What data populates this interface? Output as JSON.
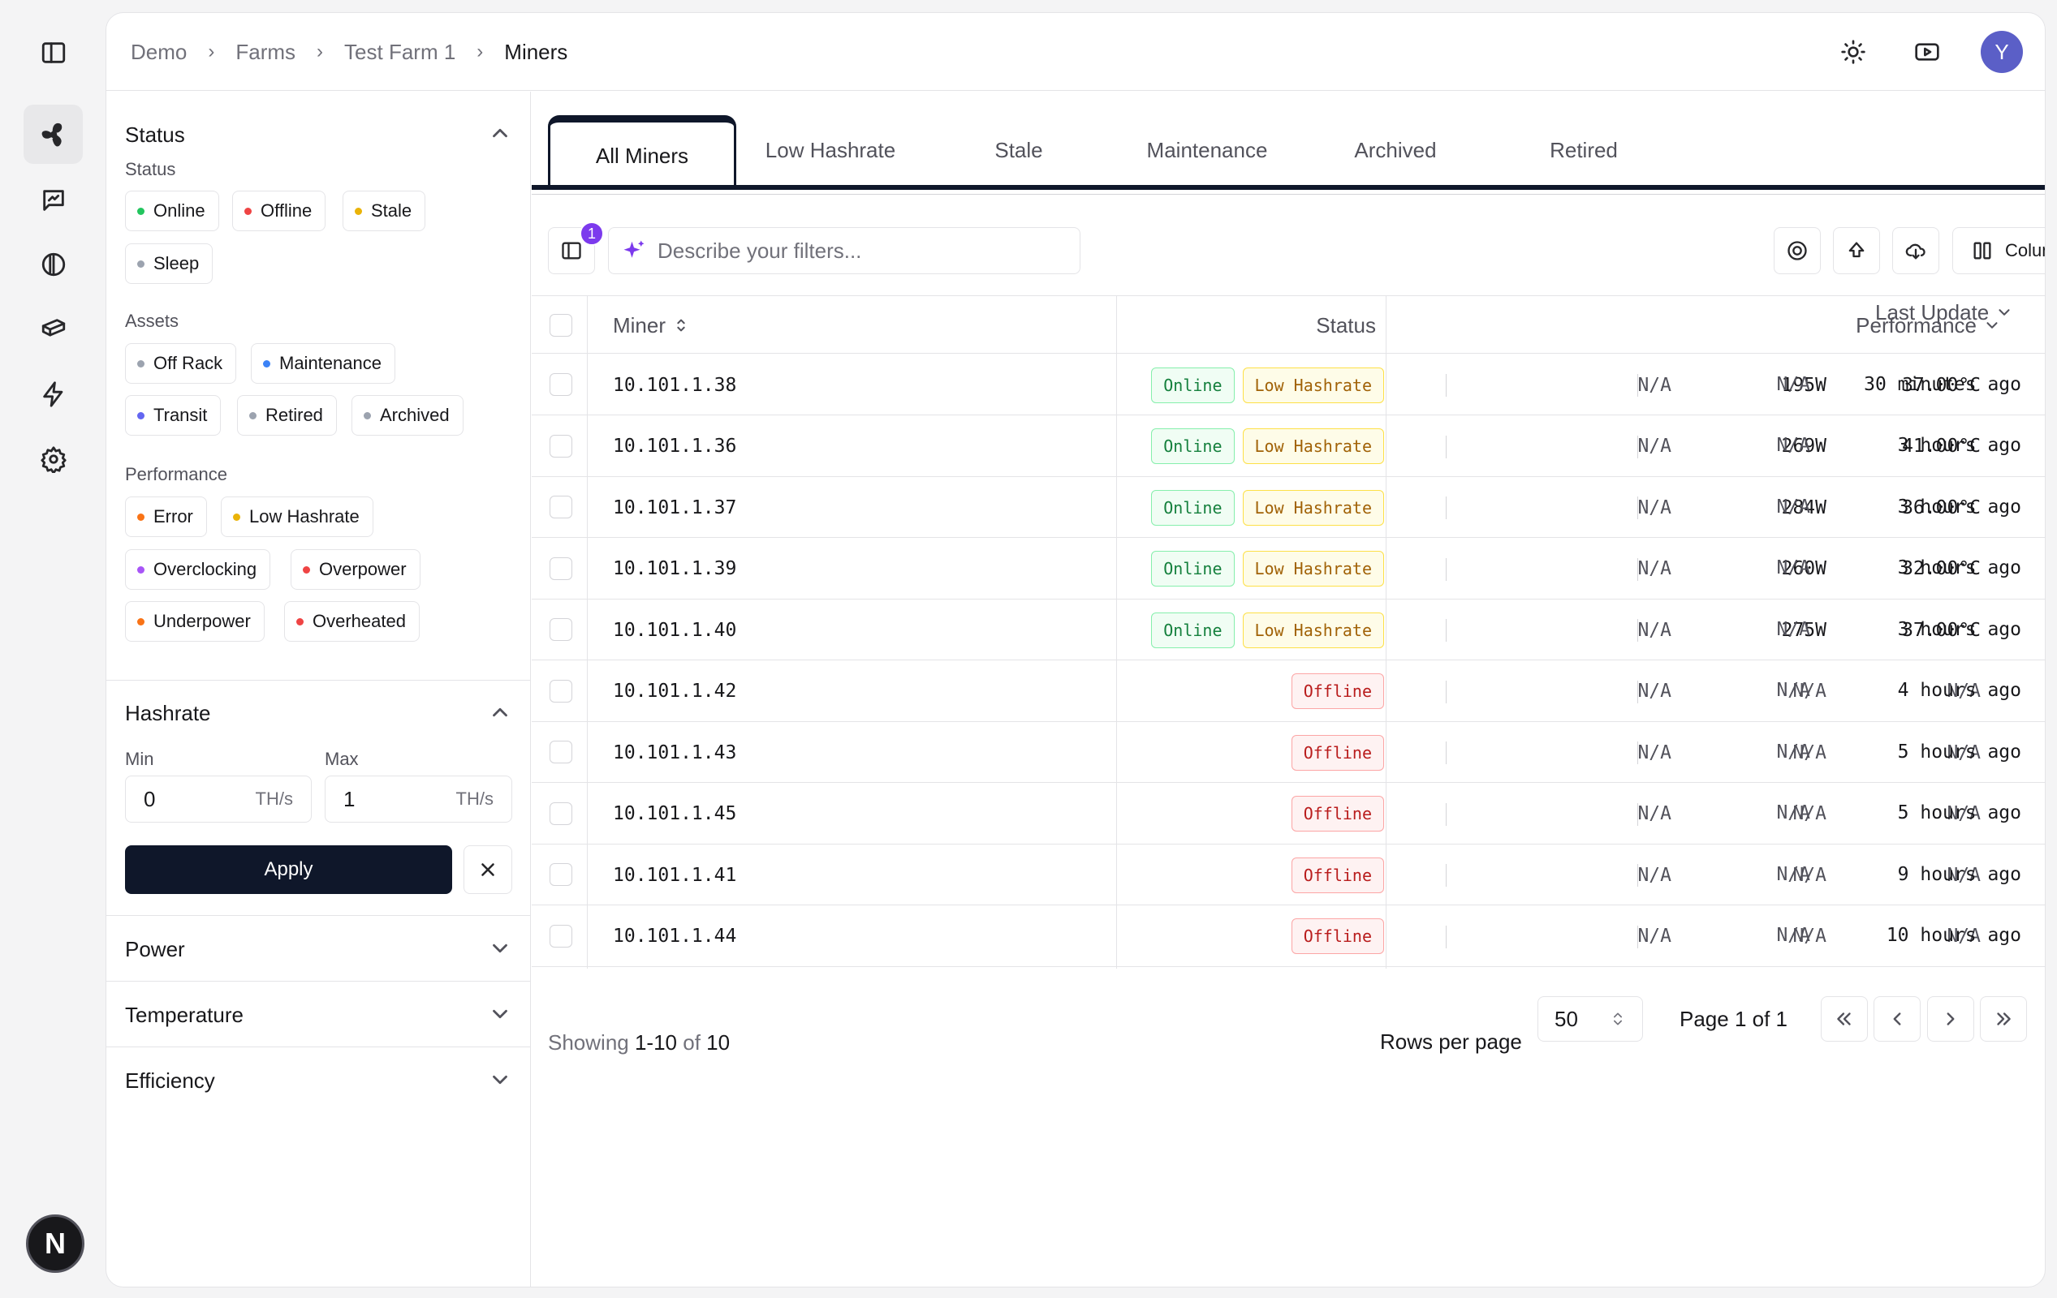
{
  "breadcrumb": [
    "Demo",
    "Farms",
    "Test Farm 1",
    "Miners"
  ],
  "header": {
    "avatar_initial": "Y"
  },
  "rail": {
    "logo_letter": "N"
  },
  "filters": {
    "status": {
      "title": "Status",
      "subtitle": "Status",
      "chips": [
        {
          "label": "Online",
          "color": "#22c55e"
        },
        {
          "label": "Offline",
          "color": "#ef4444"
        },
        {
          "label": "Stale",
          "color": "#eab308"
        },
        {
          "label": "Sleep",
          "color": "#9ca3af"
        }
      ]
    },
    "assets": {
      "subtitle": "Assets",
      "chips": [
        {
          "label": "Off Rack",
          "color": "#9ca3af"
        },
        {
          "label": "Maintenance",
          "color": "#3b82f6"
        },
        {
          "label": "Transit",
          "color": "#6366f1"
        },
        {
          "label": "Retired",
          "color": "#9ca3af"
        },
        {
          "label": "Archived",
          "color": "#9ca3af"
        }
      ]
    },
    "performance": {
      "subtitle": "Performance",
      "chips": [
        {
          "label": "Error",
          "color": "#f97316"
        },
        {
          "label": "Low Hashrate",
          "color": "#eab308"
        },
        {
          "label": "Overclocking",
          "color": "#a855f7"
        },
        {
          "label": "Overpower",
          "color": "#ef4444"
        },
        {
          "label": "Underpower",
          "color": "#f97316"
        },
        {
          "label": "Overheated",
          "color": "#ef4444"
        }
      ]
    },
    "hashrate": {
      "title": "Hashrate",
      "min_label": "Min",
      "max_label": "Max",
      "min_value": "0",
      "max_value": "1",
      "unit": "TH/s",
      "apply_label": "Apply"
    },
    "collapsed": [
      "Power",
      "Temperature",
      "Efficiency"
    ]
  },
  "tabs": [
    "All Miners",
    "Low Hashrate",
    "Stale",
    "Maintenance",
    "Archived",
    "Retired"
  ],
  "toolbar": {
    "filter_badge": "1",
    "search_placeholder": "Describe your filters...",
    "columns_label": "Columns"
  },
  "table": {
    "headers": {
      "miner": "Miner",
      "status": "Status",
      "performance": "Performance",
      "last_update": "Last Update"
    },
    "rows": [
      {
        "miner": "10.101.1.38",
        "status": [
          "Online",
          "Low Hashrate"
        ],
        "c1": "N/A",
        "power": "195W",
        "temp": "37.00°C",
        "c4": "N/A",
        "updated": "30 minutes ago"
      },
      {
        "miner": "10.101.1.36",
        "status": [
          "Online",
          "Low Hashrate"
        ],
        "c1": "N/A",
        "power": "269W",
        "temp": "41.00°C",
        "c4": "N/A",
        "updated": "3 hours ago"
      },
      {
        "miner": "10.101.1.37",
        "status": [
          "Online",
          "Low Hashrate"
        ],
        "c1": "N/A",
        "power": "284W",
        "temp": "36.00°C",
        "c4": "N/A",
        "updated": "3 hours ago"
      },
      {
        "miner": "10.101.1.39",
        "status": [
          "Online",
          "Low Hashrate"
        ],
        "c1": "N/A",
        "power": "260W",
        "temp": "32.00°C",
        "c4": "N/A",
        "updated": "3 hours ago"
      },
      {
        "miner": "10.101.1.40",
        "status": [
          "Online",
          "Low Hashrate"
        ],
        "c1": "N/A",
        "power": "275W",
        "temp": "37.00°C",
        "c4": "N/A",
        "updated": "3 hours ago"
      },
      {
        "miner": "10.101.1.42",
        "status": [
          "Offline"
        ],
        "c1": "N/A",
        "power": "N/A",
        "temp": "N/A",
        "c4": "N/A",
        "updated": "4 hours ago"
      },
      {
        "miner": "10.101.1.43",
        "status": [
          "Offline"
        ],
        "c1": "N/A",
        "power": "N/A",
        "temp": "N/A",
        "c4": "N/A",
        "updated": "5 hours ago"
      },
      {
        "miner": "10.101.1.45",
        "status": [
          "Offline"
        ],
        "c1": "N/A",
        "power": "N/A",
        "temp": "N/A",
        "c4": "N/A",
        "updated": "5 hours ago"
      },
      {
        "miner": "10.101.1.41",
        "status": [
          "Offline"
        ],
        "c1": "N/A",
        "power": "N/A",
        "temp": "N/A",
        "c4": "N/A",
        "updated": "9 hours ago"
      },
      {
        "miner": "10.101.1.44",
        "status": [
          "Offline"
        ],
        "c1": "N/A",
        "power": "N/A",
        "temp": "N/A",
        "c4": "N/A",
        "updated": "10 hours ago"
      }
    ]
  },
  "footer": {
    "showing_prefix": "Showing",
    "showing_range": "1-10",
    "showing_of": "of",
    "showing_total": "10",
    "rows_per_page_label": "Rows per page",
    "rows_per_page": "50",
    "page_label": "Page 1 of 1"
  }
}
